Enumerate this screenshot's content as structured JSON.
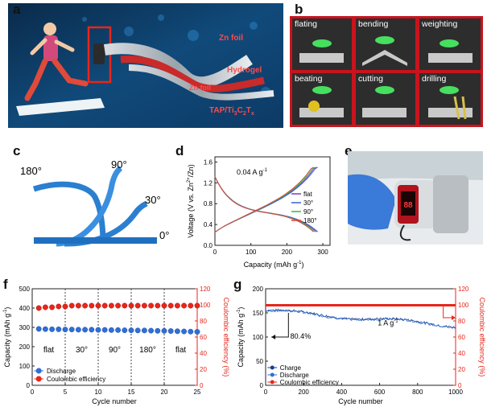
{
  "panels": {
    "a": {
      "label": "a",
      "annotations": [
        "Zn foil",
        "Hydrogel",
        "TAP/Ti",
        "C",
        "T",
        "Zn foil"
      ],
      "sub": {
        "ti": "3",
        "c": "2",
        "t": "x"
      }
    },
    "b": {
      "label": "b",
      "cells": [
        "flating",
        "bending",
        "weighting",
        "beating",
        "cutting",
        "drilling"
      ]
    },
    "c": {
      "label": "c",
      "angles": [
        "180°",
        "90°",
        "30°",
        "0°"
      ]
    },
    "d": {
      "label": "d"
    },
    "e": {
      "label": "e",
      "display_text": "88"
    },
    "f": {
      "label": "f"
    },
    "g": {
      "label": "g"
    }
  },
  "chart_data": [
    {
      "id": "d",
      "type": "line",
      "title": "",
      "xlabel": "Capacity (mAh g",
      "xlabel_sup": "-1",
      "xlabel_end": ")",
      "ylabel": "Voltage (V vs. Zn",
      "ylabel_sup": "2+",
      "ylabel_end": "/Zn)",
      "xlim": [
        0,
        320
      ],
      "ylim": [
        0,
        1.7
      ],
      "xticks": [
        "0",
        "100",
        "200",
        "300"
      ],
      "yticks": [
        "0.0",
        "0.4",
        "0.8",
        "1.2",
        "1.6"
      ],
      "annotation": "0.04 A g",
      "annotation_sup": "-1",
      "series": [
        {
          "name": "flat",
          "color": "#7a3fc0",
          "capacity": 282
        },
        {
          "name": "30°",
          "color": "#3a5fd0",
          "capacity": 286
        },
        {
          "name": "90°",
          "color": "#2fbf3a",
          "capacity": 278
        },
        {
          "name": "180°",
          "color": "#e0443a",
          "capacity": 274
        }
      ]
    },
    {
      "id": "f",
      "type": "scatter",
      "xlabel": "Cycle number",
      "ylabel": "Capacity (mAh g",
      "ylabel_sup": "-1",
      "ylabel_end": ")",
      "ylabel_right": "Coulombic efficiency (%)",
      "xlim": [
        0,
        25
      ],
      "ylim": [
        0,
        500
      ],
      "ylim_right": [
        0,
        120
      ],
      "xticks": [
        "0",
        "5",
        "10",
        "15",
        "20",
        "25"
      ],
      "yticks": [
        "0",
        "100",
        "200",
        "300",
        "400",
        "500"
      ],
      "yticks_right": [
        "0",
        "20",
        "40",
        "60",
        "80",
        "100",
        "120"
      ],
      "segments": [
        "flat",
        "30°",
        "90°",
        "180°",
        "flat"
      ],
      "dividers": [
        5,
        10,
        15,
        20
      ],
      "discharge": [
        292,
        291,
        290,
        290,
        289,
        289,
        288,
        288,
        288,
        287,
        287,
        286,
        286,
        285,
        285,
        284,
        284,
        283,
        282,
        282,
        281,
        280,
        279,
        278,
        277
      ],
      "ce": [
        96,
        97,
        97,
        98,
        98,
        99,
        99,
        99,
        99,
        99,
        99,
        99,
        99,
        99,
        99,
        99,
        99,
        99,
        99,
        99,
        99,
        99,
        99,
        99,
        99
      ],
      "legend": [
        "Discharge",
        "Coulombic efficiency"
      ]
    },
    {
      "id": "g",
      "type": "line",
      "xlabel": "Cycle number",
      "ylabel": "Capacity (mAh g",
      "ylabel_sup": "-1",
      "ylabel_end": ")",
      "ylabel_right": "Coulombic efficiency (%)",
      "xlim": [
        0,
        1000
      ],
      "ylim": [
        0,
        200
      ],
      "ylim_right": [
        0,
        120
      ],
      "xticks": [
        "0",
        "200",
        "400",
        "600",
        "800",
        "1000"
      ],
      "yticks": [
        "0",
        "50",
        "100",
        "150",
        "200"
      ],
      "yticks_right": [
        "0",
        "20",
        "40",
        "60",
        "80",
        "100",
        "120"
      ],
      "rate": "1 A g",
      "rate_sup": "-1",
      "retention": "80.4%",
      "ce_value": 99.5,
      "capacity_start": 155,
      "capacity_end": 124,
      "legend": [
        "Charge",
        "Discharge",
        "Coulombic efficiency"
      ]
    }
  ],
  "colors": {
    "red": "#e8261b",
    "blue": "#2f6fd6",
    "border": "#c8141e"
  }
}
